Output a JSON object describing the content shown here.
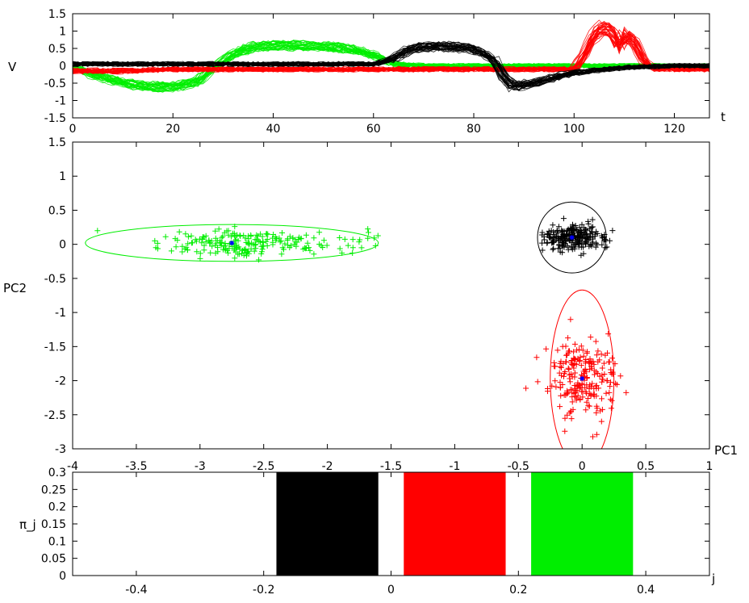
{
  "chart_data": [
    {
      "type": "line",
      "xlabel": "t",
      "ylabel": "V",
      "xlim": [
        0,
        127
      ],
      "ylim": [
        -1.5,
        1.5
      ],
      "x_ticks": [
        "0",
        "20",
        "40",
        "60",
        "80",
        "100",
        "120"
      ],
      "y_ticks": [
        "1.5",
        "1",
        "0.5",
        "0",
        "-0.5",
        "-1",
        "-1.5"
      ],
      "colors": {
        "cluster_green": "#00ee00",
        "cluster_black": "#000000",
        "cluster_red": "#ff0000"
      },
      "series": [
        {
          "color": "cluster_green",
          "x": [
            0,
            5,
            10,
            15,
            20,
            25,
            28,
            32,
            36,
            40,
            45,
            50,
            55,
            60,
            64,
            70,
            80,
            90,
            100,
            110,
            120,
            127
          ],
          "y": [
            -0.05,
            -0.3,
            -0.5,
            -0.6,
            -0.6,
            -0.45,
            -0.05,
            0.35,
            0.55,
            0.6,
            0.58,
            0.55,
            0.5,
            0.3,
            0.05,
            0,
            0,
            0,
            0,
            0,
            0,
            0
          ]
        },
        {
          "color": "cluster_black",
          "x": [
            0,
            10,
            20,
            30,
            40,
            50,
            60,
            64,
            67,
            70,
            75,
            80,
            84,
            86,
            88,
            92,
            96,
            100,
            110,
            120,
            127
          ],
          "y": [
            0.05,
            0.05,
            0.05,
            0.05,
            0.05,
            0.05,
            0.05,
            0.2,
            0.45,
            0.55,
            0.55,
            0.5,
            0.2,
            -0.3,
            -0.6,
            -0.5,
            -0.35,
            -0.2,
            -0.05,
            0,
            0
          ]
        },
        {
          "color": "cluster_red",
          "x": [
            0,
            10,
            20,
            30,
            40,
            50,
            60,
            70,
            80,
            90,
            100,
            102,
            104,
            106,
            108,
            109,
            110,
            112,
            114,
            116,
            120,
            127
          ],
          "y": [
            -0.15,
            -0.15,
            -0.1,
            -0.1,
            -0.1,
            -0.1,
            -0.1,
            -0.1,
            -0.1,
            -0.1,
            -0.1,
            0.3,
            0.9,
            1.1,
            0.9,
            0.45,
            0.9,
            0.7,
            0.1,
            -0.1,
            -0.1,
            -0.1
          ]
        }
      ]
    },
    {
      "type": "scatter",
      "xlabel": "PC1",
      "ylabel": "PC2",
      "xlim": [
        -4,
        1
      ],
      "ylim": [
        -3,
        1.5
      ],
      "x_ticks": [
        "-4",
        "-3.5",
        "-3",
        "-2.5",
        "-2",
        "-1.5",
        "-1",
        "-0.5",
        "0",
        "0.5",
        "1"
      ],
      "y_ticks": [
        "1.5",
        "1",
        "0.5",
        "0",
        "-0.5",
        "-1",
        "-1.5",
        "-2",
        "-2.5",
        "-3"
      ],
      "clusters": [
        {
          "color": "cluster_green",
          "center": [
            -2.75,
            0.02
          ],
          "spread": [
            0.25,
            0.09
          ],
          "tail_to": -1.55,
          "ellipse_radii": [
            1.15,
            0.27
          ]
        },
        {
          "color": "cluster_black",
          "center": [
            -0.08,
            0.1
          ],
          "spread": [
            0.12,
            0.1
          ],
          "tail_to": null,
          "ellipse_radii": [
            0.27,
            0.52
          ]
        },
        {
          "color": "cluster_red",
          "center": [
            0.0,
            -1.97
          ],
          "spread": [
            0.13,
            0.28
          ],
          "tail_to": null,
          "ellipse_radii": [
            0.25,
            1.3
          ]
        }
      ],
      "center_marker_color": "#0000ff"
    },
    {
      "type": "bar",
      "xlabel": "j",
      "ylabel": "π_j",
      "xlim": [
        -0.5,
        0.5
      ],
      "ylim": [
        0,
        0.3
      ],
      "x_ticks": [
        "-0.4",
        "-0.2",
        "0",
        "0.2",
        "0.4"
      ],
      "y_ticks": [
        "0.3",
        "0.25",
        "0.2",
        "0.15",
        "0.1",
        "0.05",
        "0"
      ],
      "bars": [
        {
          "color": "cluster_black",
          "x": -0.1,
          "width": 0.16,
          "value": 0.33
        },
        {
          "color": "cluster_red",
          "x": 0.1,
          "width": 0.16,
          "value": 0.33
        },
        {
          "color": "cluster_green",
          "x": 0.3,
          "width": 0.16,
          "value": 0.33
        }
      ]
    }
  ]
}
